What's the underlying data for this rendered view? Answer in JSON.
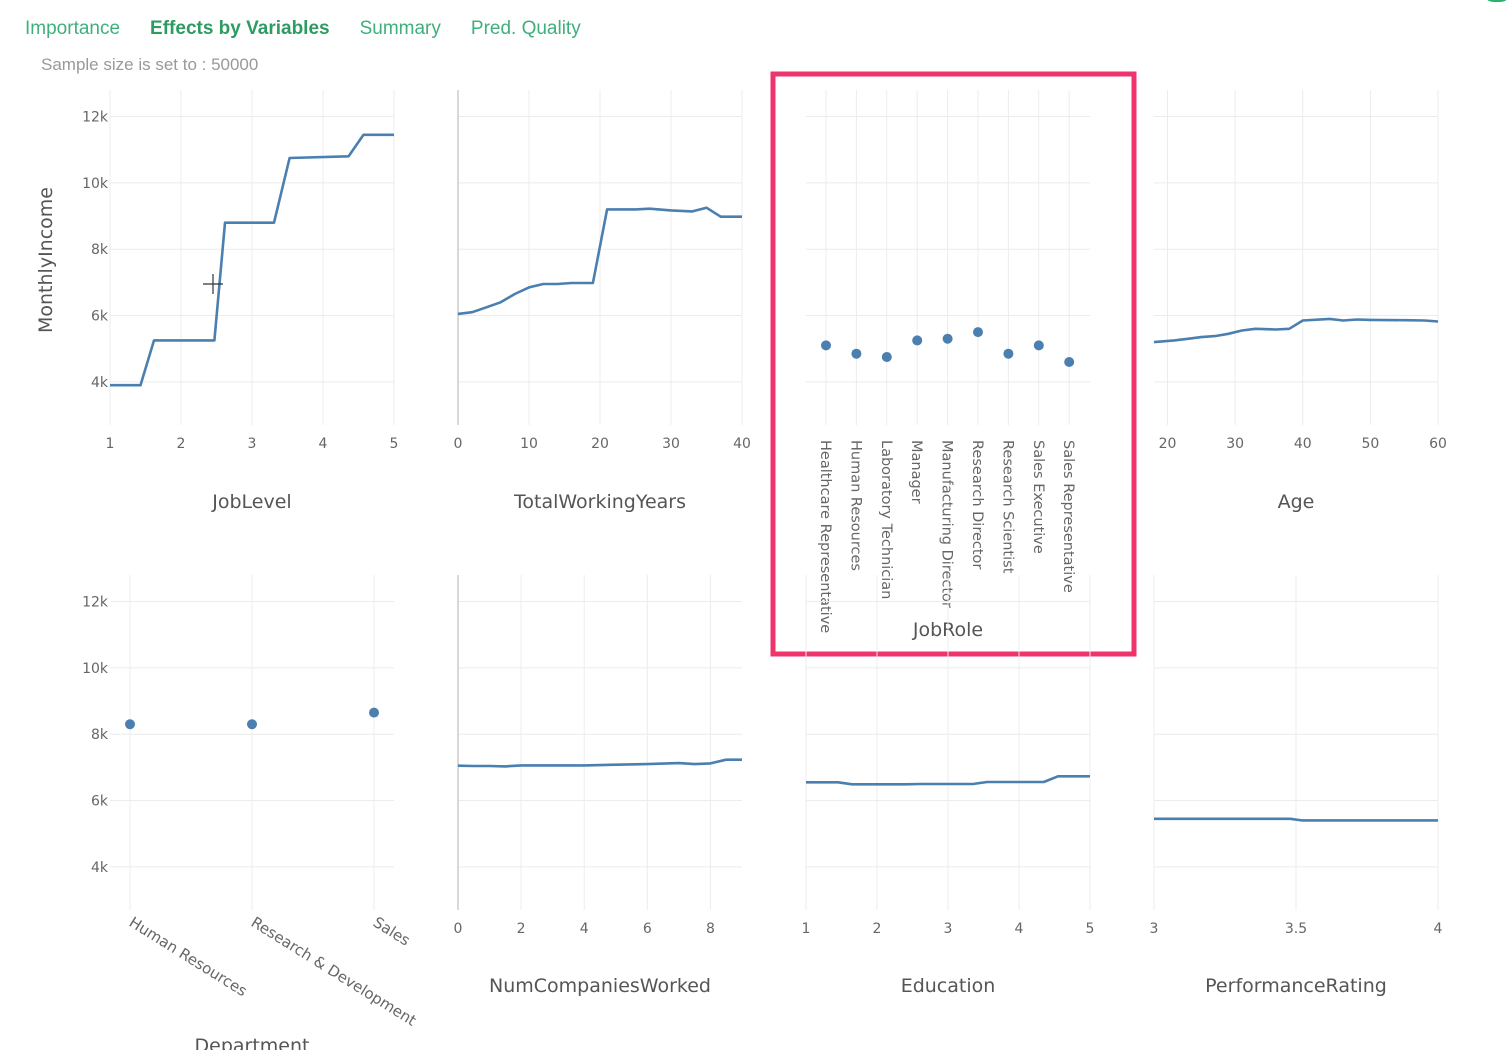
{
  "tabs": [
    {
      "label": "Importance",
      "active": false
    },
    {
      "label": "Effects by Variables",
      "active": true
    },
    {
      "label": "Summary",
      "active": false
    },
    {
      "label": "Pred. Quality",
      "active": false
    }
  ],
  "sample_size_text": "Sample size is set to : 50000",
  "highlight_color": "#f0336b",
  "series_color": "#4a7fb0",
  "accent_color": "#3fb07b",
  "chart_data": [
    {
      "type": "line",
      "xlabel": "JobLevel",
      "ylabel": "MonthlyIncome",
      "xlim": [
        1,
        5
      ],
      "ylim": [
        2700,
        12800
      ],
      "xticks": [
        1,
        2,
        3,
        4,
        5
      ],
      "xtick_labels": [
        "1",
        "2",
        "3",
        "4",
        "5"
      ],
      "yticks": [
        4000,
        6000,
        8000,
        10000,
        12000
      ],
      "ytick_labels": [
        "4k",
        "6k",
        "8k",
        "10k",
        "12k"
      ],
      "x": [
        1,
        1.43,
        1.62,
        2.47,
        2.62,
        2.67,
        3.31,
        3.53,
        4.36,
        4.57,
        5
      ],
      "y": [
        3900,
        3900,
        5250,
        5250,
        8800,
        8800,
        8800,
        10750,
        10800,
        11450,
        11450
      ]
    },
    {
      "type": "line",
      "xlabel": "TotalWorkingYears",
      "xlim": [
        0,
        40
      ],
      "ylim": [
        2700,
        12800
      ],
      "xticks": [
        0,
        10,
        20,
        30,
        40
      ],
      "xtick_labels": [
        "0",
        "10",
        "20",
        "30",
        "40"
      ],
      "x": [
        0,
        2,
        4,
        6,
        8,
        10,
        12,
        14,
        16,
        19,
        21,
        25,
        27,
        30,
        33,
        35,
        37,
        40
      ],
      "y": [
        6050,
        6100,
        6250,
        6400,
        6650,
        6850,
        6950,
        6950,
        6980,
        6980,
        9200,
        9200,
        9220,
        9170,
        9140,
        9250,
        8980,
        8980
      ]
    },
    {
      "type": "scatter",
      "xlabel": "JobRole",
      "highlighted": true,
      "ylim": [
        2700,
        12800
      ],
      "categories": [
        "Healthcare Representative",
        "Human Resources",
        "Laboratory Technician",
        "Manager",
        "Manufacturing Director",
        "Research Director",
        "Research Scientist",
        "Sales Executive",
        "Sales Representative"
      ],
      "values": [
        5100,
        4850,
        4750,
        5250,
        5300,
        5500,
        4850,
        5100,
        4600
      ]
    },
    {
      "type": "line",
      "xlabel": "Age",
      "xlim": [
        18,
        60
      ],
      "ylim": [
        2700,
        12800
      ],
      "xticks": [
        20,
        30,
        40,
        50,
        60
      ],
      "xtick_labels": [
        "20",
        "30",
        "40",
        "50",
        "60"
      ],
      "x": [
        18,
        21,
        23,
        25,
        27,
        29,
        31,
        33,
        36,
        38,
        40,
        44,
        46,
        48,
        50,
        55,
        58,
        60
      ],
      "y": [
        5200,
        5250,
        5300,
        5350,
        5380,
        5450,
        5550,
        5600,
        5580,
        5600,
        5850,
        5900,
        5850,
        5880,
        5870,
        5860,
        5850,
        5820
      ]
    },
    {
      "type": "scatter",
      "xlabel": "Department",
      "ylabel": "",
      "ylim": [
        2700,
        12800
      ],
      "yticks": [
        4000,
        6000,
        8000,
        10000,
        12000
      ],
      "ytick_labels": [
        "4k",
        "6k",
        "8k",
        "10k",
        "12k"
      ],
      "categories": [
        "Human Resources",
        "Research & Development",
        "Sales"
      ],
      "values": [
        8300,
        8300,
        8650
      ]
    },
    {
      "type": "line",
      "xlabel": "NumCompaniesWorked",
      "xlim": [
        0,
        9
      ],
      "ylim": [
        2700,
        12800
      ],
      "xticks": [
        0,
        2,
        4,
        6,
        8
      ],
      "xtick_labels": [
        "0",
        "2",
        "4",
        "6",
        "8"
      ],
      "x": [
        0,
        0.5,
        1,
        1.5,
        2,
        3,
        4,
        5,
        6,
        7,
        7.5,
        8,
        8.5,
        9
      ],
      "y": [
        7050,
        7040,
        7040,
        7030,
        7060,
        7060,
        7060,
        7080,
        7100,
        7130,
        7100,
        7120,
        7230,
        7230
      ]
    },
    {
      "type": "line",
      "xlabel": "Education",
      "xlim": [
        1,
        5
      ],
      "ylim": [
        2700,
        12800
      ],
      "xticks": [
        1,
        2,
        3,
        4,
        5
      ],
      "xtick_labels": [
        "1",
        "2",
        "3",
        "4",
        "5"
      ],
      "x": [
        1,
        1.45,
        1.65,
        2.4,
        2.6,
        3.35,
        3.55,
        4.35,
        4.55,
        5
      ],
      "y": [
        6550,
        6550,
        6490,
        6490,
        6500,
        6500,
        6560,
        6560,
        6730,
        6730
      ]
    },
    {
      "type": "line",
      "xlabel": "PerformanceRating",
      "xlim": [
        3,
        4
      ],
      "ylim": [
        2700,
        12800
      ],
      "xticks": [
        3,
        3.5,
        4
      ],
      "xtick_labels": [
        "3",
        "3.5",
        "4"
      ],
      "x": [
        3,
        3.48,
        3.52,
        4
      ],
      "y": [
        5450,
        5450,
        5400,
        5400
      ]
    }
  ]
}
